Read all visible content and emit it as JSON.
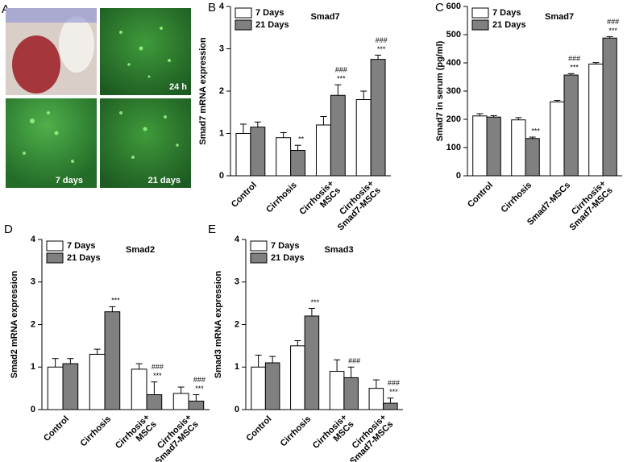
{
  "images": {
    "panel": "A",
    "captions": [
      "24 h",
      "7 days",
      "21 days"
    ]
  },
  "chart_data": [
    {
      "type": "bar",
      "panel": "B",
      "title": "Smad7",
      "ylabel": "Smad7 mRNA expression",
      "categories": [
        "Control",
        "Cirrhosis",
        "Cirrhosis+ MSCs",
        "Cirrhosis+ Smad7-MSCs"
      ],
      "series": [
        {
          "name": "7 Days",
          "color": "#ffffff",
          "values": [
            1.0,
            0.9,
            1.2,
            1.8
          ],
          "errors": [
            0.22,
            0.12,
            0.2,
            0.2
          ],
          "annotations": [
            [],
            [],
            [],
            []
          ]
        },
        {
          "name": "21 Days",
          "color": "#808080",
          "values": [
            1.15,
            0.6,
            1.9,
            2.75
          ],
          "errors": [
            0.12,
            0.12,
            0.25,
            0.1
          ],
          "annotations": [
            [],
            [
              "**"
            ],
            [
              "###",
              "***"
            ],
            [
              "###",
              "***"
            ]
          ]
        }
      ],
      "ylim": [
        0,
        4
      ],
      "yticks": [
        0,
        1,
        2,
        3,
        4
      ],
      "legend": "upper left"
    },
    {
      "type": "bar",
      "panel": "C",
      "title": "Smad7",
      "ylabel": "Smad7 in serum (pg/ml)",
      "categories": [
        "Control",
        "Cirrhosis",
        "Smad7-MSCs",
        "Cirrhosis+ Smad7-MSCs"
      ],
      "series": [
        {
          "name": "7 Days",
          "color": "#ffffff",
          "values": [
            212,
            198,
            262,
            396
          ],
          "errors": [
            8,
            8,
            5,
            5
          ],
          "annotations": [
            [],
            [],
            [],
            []
          ]
        },
        {
          "name": "21 Days",
          "color": "#808080",
          "values": [
            208,
            132,
            357,
            488
          ],
          "errors": [
            5,
            5,
            5,
            5
          ],
          "annotations": [
            [],
            [
              "***"
            ],
            [
              "###",
              "***"
            ],
            [
              "###",
              "***"
            ]
          ]
        }
      ],
      "ylim": [
        0,
        600
      ],
      "yticks": [
        0,
        100,
        200,
        300,
        400,
        500,
        600
      ],
      "legend": "upper left"
    },
    {
      "type": "bar",
      "panel": "D",
      "title": "Smad2",
      "ylabel": "Smad2 mRNA expression",
      "categories": [
        "Control",
        "Cirrhosis",
        "Cirrhosis+ MSCs",
        "Cirrhosis+ Smad7-MSCs"
      ],
      "series": [
        {
          "name": "7 Days",
          "color": "#ffffff",
          "values": [
            1.0,
            1.3,
            0.95,
            0.38
          ],
          "errors": [
            0.2,
            0.12,
            0.13,
            0.15
          ],
          "annotations": [
            [],
            [],
            [],
            []
          ]
        },
        {
          "name": "21 Days",
          "color": "#808080",
          "values": [
            1.08,
            2.3,
            0.35,
            0.2
          ],
          "errors": [
            0.12,
            0.12,
            0.3,
            0.15
          ],
          "annotations": [
            [],
            [
              "***"
            ],
            [
              "###",
              "***"
            ],
            [
              "###",
              "***"
            ]
          ]
        }
      ],
      "ylim": [
        0,
        4
      ],
      "yticks": [
        0,
        1,
        2,
        3,
        4
      ],
      "legend": "upper left"
    },
    {
      "type": "bar",
      "panel": "E",
      "title": "Smad3",
      "ylabel": "Smad3 mRNA expression",
      "categories": [
        "Control",
        "Cirrhosis",
        "Cirrhosis+ MSCs",
        "Cirrhosis+ Smad7-MSCs"
      ],
      "series": [
        {
          "name": "7 Days",
          "color": "#ffffff",
          "values": [
            1.0,
            1.5,
            0.9,
            0.5
          ],
          "errors": [
            0.28,
            0.12,
            0.27,
            0.2
          ],
          "annotations": [
            [],
            [],
            [],
            []
          ]
        },
        {
          "name": "21 Days",
          "color": "#808080",
          "values": [
            1.1,
            2.2,
            0.75,
            0.15
          ],
          "errors": [
            0.15,
            0.18,
            0.25,
            0.12
          ],
          "annotations": [
            [],
            [
              "***"
            ],
            [
              "###"
            ],
            [
              "###",
              "***"
            ]
          ]
        }
      ],
      "ylim": [
        0,
        4
      ],
      "yticks": [
        0,
        1,
        2,
        3,
        4
      ],
      "legend": "upper left"
    }
  ]
}
